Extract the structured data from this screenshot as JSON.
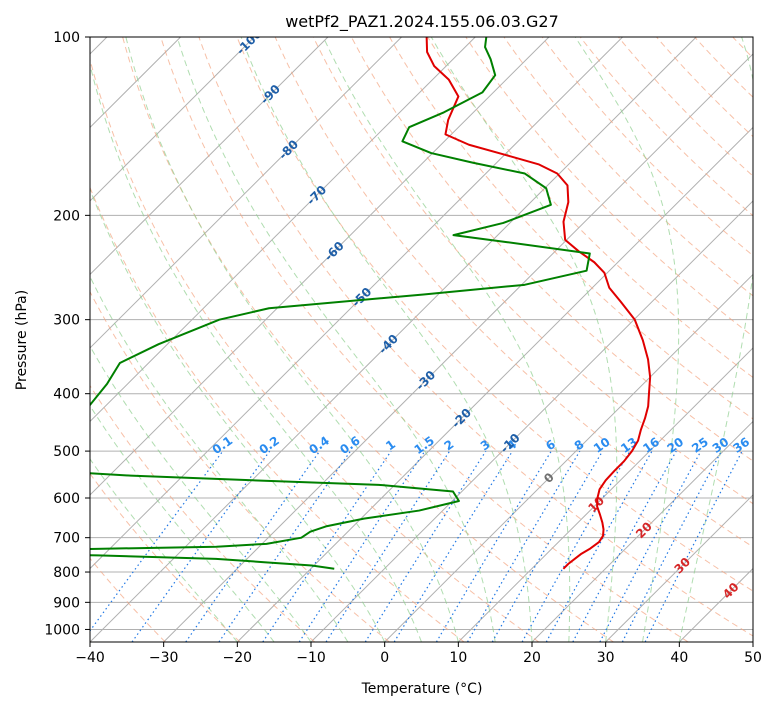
{
  "chart_data": {
    "type": "line",
    "title": "wetPf2_PAZ1.2024.155.06.03.G27",
    "xlabel": "Temperature (°C)",
    "ylabel": "Pressure (hPa)",
    "xlim": [
      -40,
      50
    ],
    "ylim": [
      1050,
      100
    ],
    "y_scale": "log",
    "skew": 35,
    "grid": true,
    "x_ticks": [
      -40,
      -30,
      -20,
      -10,
      0,
      10,
      20,
      30,
      40,
      50
    ],
    "y_ticks": [
      100,
      200,
      300,
      400,
      500,
      600,
      700,
      800,
      900,
      1000
    ],
    "series": [
      {
        "kind": "temperature",
        "color": "#e00000",
        "points": [
          [
            14.3,
            790
          ],
          [
            14.3,
            775
          ],
          [
            14.5,
            760
          ],
          [
            14.7,
            745
          ],
          [
            15.2,
            730
          ],
          [
            15.5,
            712
          ],
          [
            15.2,
            695
          ],
          [
            14.4,
            678
          ],
          [
            13.3,
            660
          ],
          [
            11.9,
            640
          ],
          [
            10.4,
            620
          ],
          [
            9.3,
            600
          ],
          [
            8.4,
            580
          ],
          [
            8.0,
            560
          ],
          [
            7.9,
            540
          ],
          [
            7.9,
            520
          ],
          [
            7.6,
            500
          ],
          [
            7.0,
            480
          ],
          [
            5.9,
            460
          ],
          [
            4.9,
            440
          ],
          [
            3.7,
            420
          ],
          [
            2.1,
            400
          ],
          [
            0.0,
            375
          ],
          [
            -2.7,
            350
          ],
          [
            -6.0,
            325
          ],
          [
            -9.9,
            300
          ],
          [
            -14.2,
            280
          ],
          [
            -17.7,
            265
          ],
          [
            -20.4,
            250
          ],
          [
            -23.2,
            240
          ],
          [
            -26.8,
            230
          ],
          [
            -30.2,
            220
          ],
          [
            -32.9,
            205
          ],
          [
            -34.9,
            190
          ],
          [
            -37.3,
            178
          ],
          [
            -40.3,
            170
          ],
          [
            -44.1,
            164
          ],
          [
            -50.0,
            158
          ],
          [
            -56.2,
            152
          ],
          [
            -60.8,
            146
          ],
          [
            -62.4,
            138
          ],
          [
            -64.2,
            126
          ],
          [
            -67.8,
            118
          ],
          [
            -71.6,
            112
          ],
          [
            -74.5,
            106
          ],
          [
            -76.6,
            100
          ]
        ]
      },
      {
        "kind": "dewpoint",
        "color": "#008000",
        "points": [
          [
            -16.8,
            790
          ],
          [
            -20.3,
            780
          ],
          [
            -27.2,
            770
          ],
          [
            -34.2,
            760
          ],
          [
            -50.7,
            750
          ],
          [
            -62.8,
            745
          ],
          [
            -54.0,
            732
          ],
          [
            -35.8,
            725
          ],
          [
            -29.4,
            717
          ],
          [
            -25.5,
            700
          ],
          [
            -25.1,
            684
          ],
          [
            -23.7,
            670
          ],
          [
            -19.6,
            650
          ],
          [
            -13.2,
            630
          ],
          [
            -9.1,
            607
          ],
          [
            -11.2,
            585
          ],
          [
            -22.2,
            570
          ],
          [
            -40.0,
            560
          ],
          [
            -57.1,
            550
          ],
          [
            -69.0,
            540
          ],
          [
            -73.6,
            535
          ],
          [
            -71.6,
            505
          ],
          [
            -71.9,
            440
          ],
          [
            -72.8,
            385
          ],
          [
            -73.9,
            355
          ],
          [
            -71.2,
            330
          ],
          [
            -66.3,
            300
          ],
          [
            -61.1,
            287
          ],
          [
            -42.0,
            272
          ],
          [
            -29.6,
            262
          ],
          [
            -23.1,
            248
          ],
          [
            -25.0,
            232
          ],
          [
            -37.7,
            222
          ],
          [
            -46.0,
            216
          ],
          [
            -40.9,
            206
          ],
          [
            -36.9,
            192
          ],
          [
            -39.8,
            180
          ],
          [
            -44.7,
            170
          ],
          [
            -53.2,
            163
          ],
          [
            -60.2,
            157
          ],
          [
            -65.7,
            150
          ],
          [
            -66.7,
            142
          ],
          [
            -64.0,
            134
          ],
          [
            -61.5,
            124
          ],
          [
            -62.1,
            116
          ],
          [
            -64.9,
            109
          ],
          [
            -67.3,
            104
          ],
          [
            -68.5,
            100
          ]
        ]
      }
    ],
    "dry_adiabat_thetas": [
      230,
      240,
      250,
      260,
      270,
      280,
      290,
      300,
      310,
      320,
      330,
      340,
      350,
      360,
      370,
      380,
      390,
      400,
      410,
      420,
      430,
      440,
      450,
      460,
      470,
      480,
      490,
      500
    ],
    "moist_adiabat_starts": [
      -20,
      -15,
      -10,
      -5,
      0,
      5,
      10,
      15,
      20,
      25,
      30,
      35,
      40
    ],
    "mixing_ratio_lines": [
      {
        "w": 0.1,
        "label": "0.1"
      },
      {
        "w": 0.2,
        "label": "0.2"
      },
      {
        "w": 0.4,
        "label": "0.4"
      },
      {
        "w": 0.6,
        "label": "0.6"
      },
      {
        "w": 1,
        "label": "1"
      },
      {
        "w": 1.5,
        "label": "1.5"
      },
      {
        "w": 2,
        "label": "2"
      },
      {
        "w": 3,
        "label": "3"
      },
      {
        "w": 4,
        "label": "4"
      },
      {
        "w": 6,
        "label": "6"
      },
      {
        "w": 8,
        "label": "8"
      },
      {
        "w": 10,
        "label": "10"
      },
      {
        "w": 13,
        "label": "13"
      },
      {
        "w": 16,
        "label": "16"
      },
      {
        "w": 20,
        "label": "20"
      },
      {
        "w": 25,
        "label": "25"
      },
      {
        "w": 30,
        "label": "30"
      },
      {
        "w": 36,
        "label": "36"
      }
    ],
    "isotherm_labels_blue": [
      {
        "text": "-100",
        "t": -100,
        "p": 102
      },
      {
        "text": "-90",
        "t": -90,
        "p": 125
      },
      {
        "text": "-80",
        "t": -80,
        "p": 155
      },
      {
        "text": "-70",
        "t": -70,
        "p": 185
      },
      {
        "text": "-60",
        "t": -60,
        "p": 230
      },
      {
        "text": "-50",
        "t": -50,
        "p": 275
      },
      {
        "text": "-40",
        "t": -40,
        "p": 330
      },
      {
        "text": "-30",
        "t": -30,
        "p": 380
      },
      {
        "text": "-20",
        "t": -20,
        "p": 440
      },
      {
        "text": "-10",
        "t": -10,
        "p": 485
      }
    ],
    "isotherm_labels_red": [
      {
        "text": "0",
        "t": 0,
        "p": 555,
        "color": "#707070"
      },
      {
        "text": "10",
        "t": 10,
        "p": 615,
        "color": "#d62728"
      },
      {
        "text": "20",
        "t": 20,
        "p": 680,
        "color": "#d62728"
      },
      {
        "text": "30",
        "t": 30,
        "p": 780,
        "color": "#d62728"
      },
      {
        "text": "40",
        "t": 40,
        "p": 860,
        "color": "#d62728"
      }
    ]
  }
}
